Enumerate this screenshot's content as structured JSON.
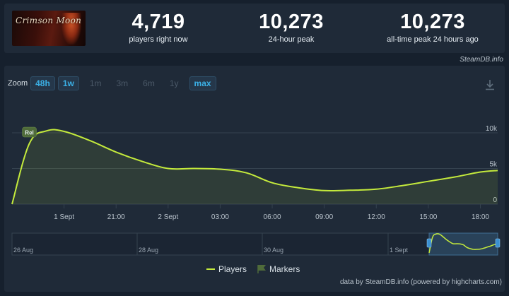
{
  "header": {
    "game_image_text": "Crimson Moon",
    "stats": [
      {
        "value": "4,719",
        "label": "players right now"
      },
      {
        "value": "10,273",
        "label": "24-hour peak"
      },
      {
        "value": "10,273",
        "label": "all-time peak 24 hours ago"
      }
    ],
    "source_tag": "SteamDB.info"
  },
  "zoom": {
    "label": "Zoom",
    "buttons": [
      {
        "label": "48h",
        "active": true
      },
      {
        "label": "1w",
        "active": true
      },
      {
        "label": "1m",
        "active": false
      },
      {
        "label": "3m",
        "active": false
      },
      {
        "label": "6m",
        "active": false
      },
      {
        "label": "1y",
        "active": false
      },
      {
        "label": "max",
        "active": true
      }
    ]
  },
  "chart_data": {
    "type": "area",
    "x_tick_labels": [
      "1 Sept",
      "21:00",
      "2 Sept",
      "03:00",
      "06:00",
      "09:00",
      "12:00",
      "15:00",
      "18:00"
    ],
    "y_tick_labels": [
      "10k",
      "5k",
      "0"
    ],
    "ylim": [
      0,
      10000
    ],
    "series": [
      {
        "name": "Players",
        "color": "#c4ea3c",
        "x": [
          "1 Sept 15:00",
          "1 Sept 16:00",
          "1 Sept 17:00",
          "1 Sept 18:00",
          "1 Sept 19:30",
          "1 Sept 21:00",
          "1 Sept 22:30",
          "2 Sept 00:00",
          "2 Sept 01:30",
          "2 Sept 03:00",
          "2 Sept 04:30",
          "2 Sept 06:00",
          "2 Sept 07:30",
          "2 Sept 09:00",
          "2 Sept 10:30",
          "2 Sept 12:00",
          "2 Sept 13:30",
          "2 Sept 15:00",
          "2 Sept 16:30",
          "2 Sept 18:00",
          "2 Sept 19:00"
        ],
        "values": [
          0,
          8500,
          10273,
          10200,
          8900,
          7300,
          6000,
          5000,
          5000,
          4900,
          4400,
          3000,
          2300,
          1900,
          1950,
          2100,
          2600,
          3200,
          3800,
          4500,
          4719
        ]
      }
    ],
    "markers": [
      {
        "label": "Rel",
        "x": "1 Sept 16:00"
      }
    ],
    "navigator": {
      "tick_labels": [
        "26 Aug",
        "28 Aug",
        "30 Aug",
        "1 Sept"
      ]
    },
    "legend": [
      "Players",
      "Markers"
    ]
  },
  "credits": "data by SteamDB.info (powered by highcharts.com)"
}
